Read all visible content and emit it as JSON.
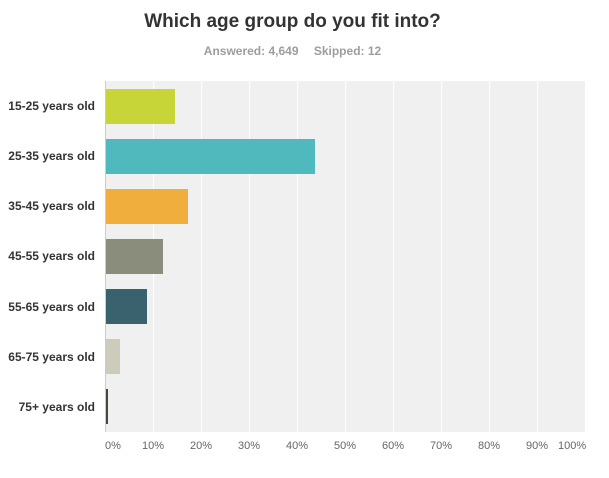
{
  "header": {
    "title": "Which age group do you fit into?",
    "answered": "Answered: 4,649",
    "skipped": "Skipped: 12"
  },
  "chart_data": {
    "type": "bar",
    "orientation": "horizontal",
    "title": "Which age group do you fit into?",
    "subtitle": "Answered: 4,649  Skipped: 12",
    "categories": [
      "15-25 years old",
      "25-35 years old",
      "35-45 years old",
      "45-55 years old",
      "55-65 years old",
      "65-75 years old",
      "75+ years old"
    ],
    "values": [
      14.3,
      43.6,
      17.1,
      11.9,
      8.6,
      3.0,
      0.4
    ],
    "bar_colors": [
      "#c8d539",
      "#50b9be",
      "#f0af3c",
      "#8a8d7c",
      "#3a616e",
      "#cdcbb9",
      "#47473f"
    ],
    "x_ticks": [
      "0%",
      "10%",
      "20%",
      "30%",
      "40%",
      "50%",
      "60%",
      "70%",
      "80%",
      "90%",
      "100%"
    ],
    "xlim": [
      0,
      100
    ],
    "xlabel": "",
    "ylabel": "",
    "grid": true,
    "legend": false,
    "plot_background": "#f0f0f1",
    "gridline_color": "#ffffff",
    "axis_line_color": "#cccccc",
    "title_color": "#333333",
    "subtitle_color": "#9d9d9d",
    "label_color": "#333333",
    "tick_color": "#666666"
  }
}
